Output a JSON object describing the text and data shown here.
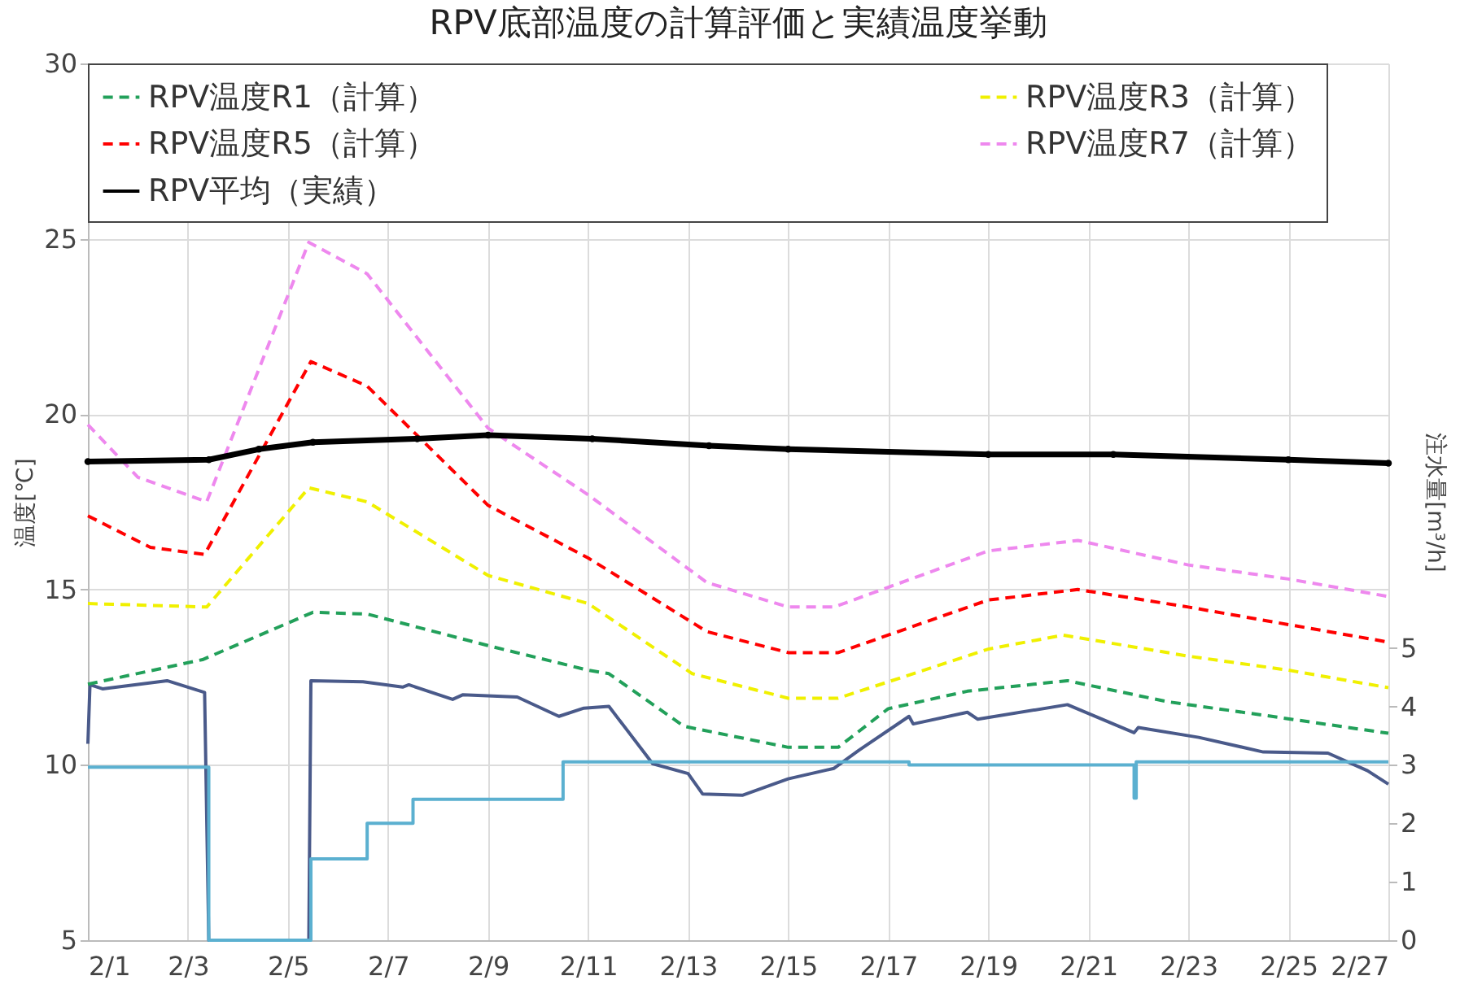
{
  "chart_data": {
    "type": "line",
    "title": "RPV底部温度の計算評価と実績温度挙動",
    "ylabel": "温度[℃]",
    "y2label": "注水量[m³/h]",
    "xlim": [
      "--02-01",
      "--02-27"
    ],
    "xticks": [
      {
        "value": "--02-01",
        "label": "2/1"
      },
      {
        "value": "--02-03",
        "label": "2/3"
      },
      {
        "value": "--02-05",
        "label": "2/5"
      },
      {
        "value": "--02-07",
        "label": "2/7"
      },
      {
        "value": "--02-09",
        "label": "2/9"
      },
      {
        "value": "--02-11",
        "label": "2/11"
      },
      {
        "value": "--02-13",
        "label": "2/13"
      },
      {
        "value": "--02-15",
        "label": "2/15"
      },
      {
        "value": "--02-17",
        "label": "2/17"
      },
      {
        "value": "--02-19",
        "label": "2/19"
      },
      {
        "value": "--02-21",
        "label": "2/21"
      },
      {
        "value": "--02-23",
        "label": "2/23"
      },
      {
        "value": "--02-25",
        "label": "2/25"
      },
      {
        "value": "--02-27",
        "label": "2/27"
      }
    ],
    "ylim": [
      5,
      30
    ],
    "yticks": [
      5,
      10,
      15,
      20,
      25,
      30
    ],
    "y2lim": [
      0,
      15
    ],
    "y2ticks": [
      0,
      1,
      2,
      3,
      4,
      5
    ],
    "grid": true,
    "legend": "top",
    "series": [
      {
        "name": "RPV温度R1（計算）",
        "color": "#22a05a",
        "line_style": "dashed",
        "x": [
          "--02-01",
          "--02-03T07:00",
          "--02-05T12:00",
          "--02-06T14:00",
          "--02-09",
          "--02-11",
          "--02-11T10:00",
          "--02-12T22:00",
          "--02-15",
          "--02-16",
          "--02-17",
          "--02-18T14:00",
          "--02-20T14:00",
          "--02-22T14:00",
          "--02-24T14:00",
          "--02-27"
        ],
        "values": [
          12.3,
          13.0,
          14.35,
          14.3,
          13.4,
          12.7,
          12.6,
          11.1,
          10.5,
          10.5,
          11.6,
          12.1,
          12.4,
          11.8,
          11.4,
          10.9
        ]
      },
      {
        "name": "RPV温度R3（計算）",
        "color": "#f0f000",
        "line_style": "dashed",
        "x": [
          "--02-01",
          "--02-03T09:00",
          "--02-05T10:00",
          "--02-06T14:00",
          "--02-09",
          "--02-11",
          "--02-13T02:00",
          "--02-15",
          "--02-16",
          "--02-19",
          "--02-20T12:00",
          "--02-23",
          "--02-25",
          "--02-27"
        ],
        "values": [
          14.6,
          14.5,
          17.9,
          17.5,
          15.4,
          14.6,
          12.6,
          11.9,
          11.9,
          13.3,
          13.7,
          13.1,
          12.7,
          12.2
        ]
      },
      {
        "name": "RPV温度R5（計算）",
        "color": "#ff0000",
        "line_style": "dashed",
        "x": [
          "--02-01",
          "--02-02T06:00",
          "--02-03T08:00",
          "--02-05T11:00",
          "--02-06T14:00",
          "--02-09",
          "--02-11",
          "--02-13T09:00",
          "--02-15",
          "--02-16",
          "--02-19",
          "--02-20T19:00",
          "--02-23",
          "--02-25",
          "--02-27"
        ],
        "values": [
          17.1,
          16.2,
          16.0,
          21.5,
          20.8,
          17.4,
          15.9,
          13.8,
          13.2,
          13.2,
          14.7,
          15.0,
          14.5,
          14.0,
          13.5
        ]
      },
      {
        "name": "RPV温度R7（計算）",
        "color": "#ee88ee",
        "line_style": "dashed",
        "x": [
          "--02-01",
          "--02-02",
          "--02-03T09:00",
          "--02-05T10:00",
          "--02-06T14:00",
          "--02-09",
          "--02-11",
          "--02-13T09:00",
          "--02-15",
          "--02-15T22:00",
          "--02-19",
          "--02-20T19:00",
          "--02-23",
          "--02-25",
          "--02-27"
        ],
        "values": [
          19.7,
          18.2,
          17.5,
          24.9,
          24,
          19.6,
          17.7,
          15.2,
          14.5,
          14.5,
          16.1,
          16.4,
          15.7,
          15.3,
          14.8
        ]
      },
      {
        "name": "RPV平均（実績）",
        "color": "#000000",
        "line_style": "solid",
        "marker": "circle",
        "x": [
          "--02-01",
          "--02-03T10:00",
          "--02-04T10:00",
          "--02-05T12:00",
          "--02-07T14:00",
          "--02-09",
          "--02-11T02:00",
          "--02-13T10:00",
          "--02-15",
          "--02-19",
          "--02-21T12:00",
          "--02-25",
          "--02-27"
        ],
        "values": [
          18.65,
          18.7,
          19.0,
          19.2,
          19.3,
          19.4,
          19.3,
          19.1,
          19.0,
          18.85,
          18.85,
          18.7,
          18.6
        ]
      },
      {
        "color": "#4a5a8a",
        "axis": "y2",
        "x": [
          "--02-01",
          "--02-01T01:00",
          "--02-01T07:00",
          "--02-02T14:00",
          "--02-03T08:00",
          "--02-03T10:00",
          "--02-05T10:00",
          "--02-05T11:00",
          "--02-06T12:00",
          "--02-07T07:00",
          "--02-07T10:00",
          "--02-08T07:00",
          "--02-08T12:00",
          "--02-09T14:00",
          "--02-10T10:00",
          "--02-10T22:00",
          "--02-11T10:00",
          "--02-12T07:00",
          "--02-13",
          "--02-13T07:00",
          "--02-14T02:00",
          "--02-15",
          "--02-15T22:00",
          "--02-16T10:00",
          "--02-17T10:00",
          "--02-17T12:00",
          "--02-18T14:00",
          "--02-18T19:00",
          "--02-20T14:00",
          "--02-21T22:00",
          "--02-22",
          "--02-23T05:00",
          "--02-24T12:00",
          "--02-25T19:00",
          "--02-26T14:00",
          "--02-27"
        ],
        "values": [
          3.36,
          4.37,
          4.3,
          4.44,
          4.24,
          0,
          0,
          4.44,
          4.42,
          4.33,
          4.37,
          4.12,
          4.2,
          4.16,
          3.83,
          3.97,
          4.0,
          3.02,
          2.85,
          2.5,
          2.48,
          2.76,
          2.94,
          3.25,
          3.83,
          3.7,
          3.9,
          3.78,
          4.03,
          3.55,
          3.64,
          3.47,
          3.22,
          3.2,
          2.9,
          2.67
        ]
      },
      {
        "type": "step",
        "color": "#5bb0d0",
        "axis": "y2",
        "x": [
          "--02-01",
          "--02-03T10:00",
          "--02-05T11:00",
          "--02-06T14:00",
          "--02-07T12:00",
          "--02-10T12:00",
          "--02-17T10:00",
          "--02-21T22:00",
          "--02-21T23:00",
          "--02-27"
        ],
        "values": [
          2.96,
          0,
          1.39,
          2.0,
          2.41,
          3.05,
          3.0,
          2.43,
          3.05,
          3.05
        ]
      }
    ]
  }
}
